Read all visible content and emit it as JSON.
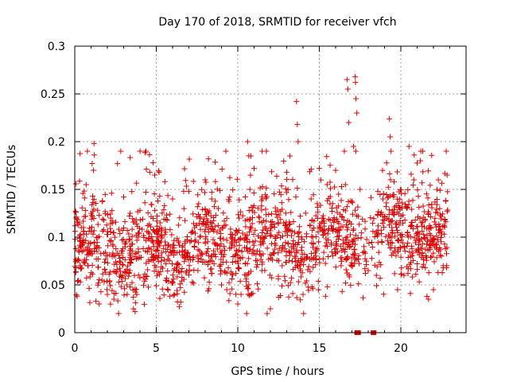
{
  "chart_data": {
    "type": "scatter",
    "title": "Day 170 of 2018, SRMTID for receiver vfch",
    "xlabel": "GPS time / hours",
    "ylabel": "SRMTID / TECUs",
    "xlim": [
      0,
      24
    ],
    "ylim": [
      0,
      0.3
    ],
    "xticks": [
      0,
      5,
      10,
      15,
      20
    ],
    "xtick_labels": [
      "0",
      "5",
      "10",
      "15",
      "20"
    ],
    "yticks": [
      0,
      0.05,
      0.1,
      0.15,
      0.2,
      0.25,
      0.3
    ],
    "ytick_labels": [
      "0",
      "0.05",
      "0.1",
      "0.15",
      "0.2",
      "0.25",
      "0.3"
    ],
    "grid": true,
    "marker": "plus",
    "color": "#dd0000",
    "x_range_of_points": [
      0,
      22.9
    ],
    "typical_y_range": [
      0.03,
      0.17
    ],
    "zero_points": [
      {
        "x": 17.3,
        "y": 0
      },
      {
        "x": 17.4,
        "y": 0
      },
      {
        "x": 18.3,
        "y": 0
      },
      {
        "x": 18.35,
        "y": 0
      }
    ],
    "series": [
      {
        "name": "SRMTID",
        "points": [
          {
            "x": 0.05,
            "y": 0.127
          },
          {
            "x": 0.1,
            "y": 0.121
          },
          {
            "x": 0.2,
            "y": 0.113
          },
          {
            "x": 0.3,
            "y": 0.1
          },
          {
            "x": 0.4,
            "y": 0.11
          },
          {
            "x": 0.45,
            "y": 0.085
          },
          {
            "x": 0.5,
            "y": 0.095
          },
          {
            "x": 0.6,
            "y": 0.141
          },
          {
            "x": 0.65,
            "y": 0.128
          },
          {
            "x": 0.7,
            "y": 0.155
          },
          {
            "x": 0.8,
            "y": 0.07
          },
          {
            "x": 1.0,
            "y": 0.125
          },
          {
            "x": 1.1,
            "y": 0.143
          },
          {
            "x": 1.15,
            "y": 0.17
          },
          {
            "x": 1.18,
            "y": 0.198
          },
          {
            "x": 1.2,
            "y": 0.186
          },
          {
            "x": 1.3,
            "y": 0.033
          },
          {
            "x": 1.5,
            "y": 0.03
          },
          {
            "x": 1.7,
            "y": 0.138
          },
          {
            "x": 2.0,
            "y": 0.04
          },
          {
            "x": 2.2,
            "y": 0.12
          },
          {
            "x": 2.4,
            "y": 0.035
          },
          {
            "x": 2.7,
            "y": 0.053
          },
          {
            "x": 3.0,
            "y": 0.142
          },
          {
            "x": 3.2,
            "y": 0.05
          },
          {
            "x": 3.4,
            "y": 0.125
          },
          {
            "x": 3.6,
            "y": 0.025
          },
          {
            "x": 3.7,
            "y": 0.022
          },
          {
            "x": 3.8,
            "y": 0.04
          },
          {
            "x": 4.0,
            "y": 0.128
          },
          {
            "x": 4.3,
            "y": 0.136
          },
          {
            "x": 4.6,
            "y": 0.168
          },
          {
            "x": 4.8,
            "y": 0.178
          },
          {
            "x": 4.9,
            "y": 0.165
          },
          {
            "x": 5.3,
            "y": 0.095
          },
          {
            "x": 5.5,
            "y": 0.133
          },
          {
            "x": 6.0,
            "y": 0.14
          },
          {
            "x": 6.5,
            "y": 0.032
          },
          {
            "x": 7.0,
            "y": 0.148
          },
          {
            "x": 7.6,
            "y": 0.135
          },
          {
            "x": 8.0,
            "y": 0.16
          },
          {
            "x": 8.2,
            "y": 0.182
          },
          {
            "x": 8.4,
            "y": 0.14
          },
          {
            "x": 8.8,
            "y": 0.13
          },
          {
            "x": 9.0,
            "y": 0.05
          },
          {
            "x": 9.5,
            "y": 0.142
          },
          {
            "x": 10.0,
            "y": 0.03
          },
          {
            "x": 10.2,
            "y": 0.04
          },
          {
            "x": 10.5,
            "y": 0.1
          },
          {
            "x": 10.6,
            "y": 0.2
          },
          {
            "x": 10.8,
            "y": 0.185
          },
          {
            "x": 11.0,
            "y": 0.172
          },
          {
            "x": 11.5,
            "y": 0.14
          },
          {
            "x": 11.8,
            "y": 0.02
          },
          {
            "x": 12.0,
            "y": 0.025
          },
          {
            "x": 12.5,
            "y": 0.037
          },
          {
            "x": 13.0,
            "y": 0.168
          },
          {
            "x": 13.2,
            "y": 0.185
          },
          {
            "x": 13.5,
            "y": 0.08
          },
          {
            "x": 13.6,
            "y": 0.242
          },
          {
            "x": 13.65,
            "y": 0.218
          },
          {
            "x": 13.7,
            "y": 0.2
          },
          {
            "x": 14.0,
            "y": 0.04
          },
          {
            "x": 14.5,
            "y": 0.14
          },
          {
            "x": 15.0,
            "y": 0.172
          },
          {
            "x": 15.5,
            "y": 0.048
          },
          {
            "x": 16.0,
            "y": 0.17
          },
          {
            "x": 16.5,
            "y": 0.118
          },
          {
            "x": 16.6,
            "y": 0.155
          },
          {
            "x": 16.7,
            "y": 0.265
          },
          {
            "x": 16.75,
            "y": 0.255
          },
          {
            "x": 16.8,
            "y": 0.22
          },
          {
            "x": 17.0,
            "y": 0.07
          },
          {
            "x": 17.1,
            "y": 0.195
          },
          {
            "x": 17.2,
            "y": 0.268
          },
          {
            "x": 17.22,
            "y": 0.262
          },
          {
            "x": 17.25,
            "y": 0.245
          },
          {
            "x": 17.3,
            "y": 0.23
          },
          {
            "x": 17.5,
            "y": 0.15
          },
          {
            "x": 18.0,
            "y": 0.065
          },
          {
            "x": 18.5,
            "y": 0.06
          },
          {
            "x": 18.9,
            "y": 0.14
          },
          {
            "x": 19.3,
            "y": 0.224
          },
          {
            "x": 19.35,
            "y": 0.205
          },
          {
            "x": 19.4,
            "y": 0.19
          },
          {
            "x": 19.8,
            "y": 0.045
          },
          {
            "x": 20.5,
            "y": 0.195
          },
          {
            "x": 20.8,
            "y": 0.16
          },
          {
            "x": 21.2,
            "y": 0.18
          },
          {
            "x": 21.5,
            "y": 0.068
          },
          {
            "x": 21.6,
            "y": 0.038
          },
          {
            "x": 21.7,
            "y": 0.035
          },
          {
            "x": 22.0,
            "y": 0.045
          },
          {
            "x": 22.3,
            "y": 0.16
          },
          {
            "x": 22.6,
            "y": 0.07
          },
          {
            "x": 22.8,
            "y": 0.068
          }
        ]
      }
    ]
  }
}
